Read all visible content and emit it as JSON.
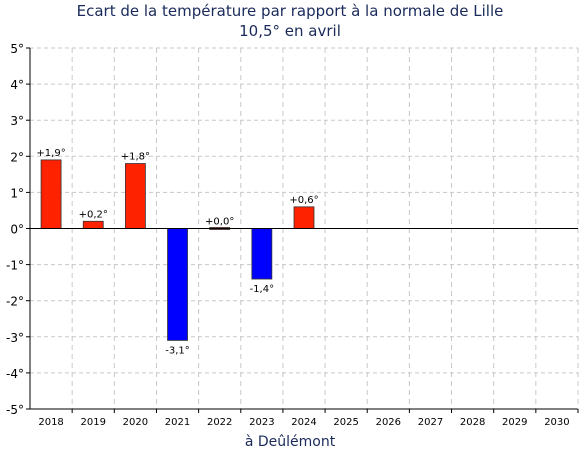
{
  "chart_data": {
    "type": "bar",
    "title": "Ecart de la température par rapport à la normale de Lille",
    "subtitle": "10,5° en avril",
    "xlabel": "à Deûlémont",
    "ylabel": "",
    "categories": [
      "2018",
      "2019",
      "2020",
      "2021",
      "2022",
      "2023",
      "2024",
      "2025",
      "2026",
      "2027",
      "2028",
      "2029",
      "2030"
    ],
    "values": [
      1.9,
      0.2,
      1.8,
      -3.1,
      0.0,
      -1.4,
      0.6,
      null,
      null,
      null,
      null,
      null,
      null
    ],
    "data_labels": [
      "+1,9°",
      "+0,2°",
      "+1,8°",
      "-3,1°",
      "+0,0°",
      "-1,4°",
      "+0,6°",
      "",
      "",
      "",
      "",
      "",
      ""
    ],
    "ylim": [
      -5,
      5
    ],
    "yticks": [
      5,
      4,
      3,
      2,
      1,
      0,
      -1,
      -2,
      -3,
      -4,
      -5
    ],
    "ytick_labels": [
      "5°",
      "4°",
      "3°",
      "2°",
      "1°",
      "0°",
      "-1°",
      "-2°",
      "-3°",
      "-4°",
      "-5°"
    ],
    "grid": true,
    "colors": {
      "positive": "#ff2200",
      "negative": "#0000ff",
      "axis": "#000000",
      "grid": "#c8c8c8",
      "title": "#1a2a5a"
    }
  }
}
